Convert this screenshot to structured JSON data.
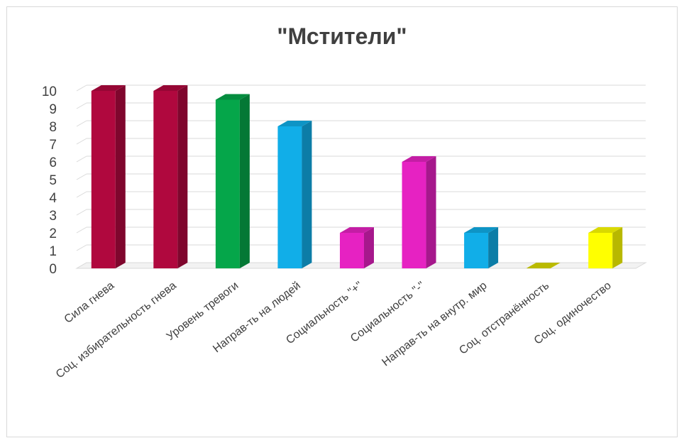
{
  "chart_data": {
    "type": "bar",
    "title": "\"Мстители\"",
    "categories": [
      "Сила гнева",
      "Соц. избирательность гнева",
      "Уровень тревоги",
      "Направ-ть на людей",
      "Социальность \"+\"",
      "Социальность \"-\"",
      "Направ-ть на внутр. мир",
      "Соц. отстранённость",
      "Соц. одиночество"
    ],
    "values": [
      10,
      10,
      9.5,
      8,
      2,
      6,
      2,
      0,
      2
    ],
    "colors": [
      "#b0083e",
      "#b0083e",
      "#05a64a",
      "#11aee8",
      "#e622c2",
      "#e622c2",
      "#11aee8",
      "#cfcf00",
      "#ffff00"
    ],
    "ylim": [
      0,
      10
    ],
    "yticks": [
      0,
      1,
      2,
      3,
      4,
      5,
      6,
      7,
      8,
      9,
      10
    ],
    "grid": true,
    "xlabel": "",
    "ylabel": ""
  }
}
